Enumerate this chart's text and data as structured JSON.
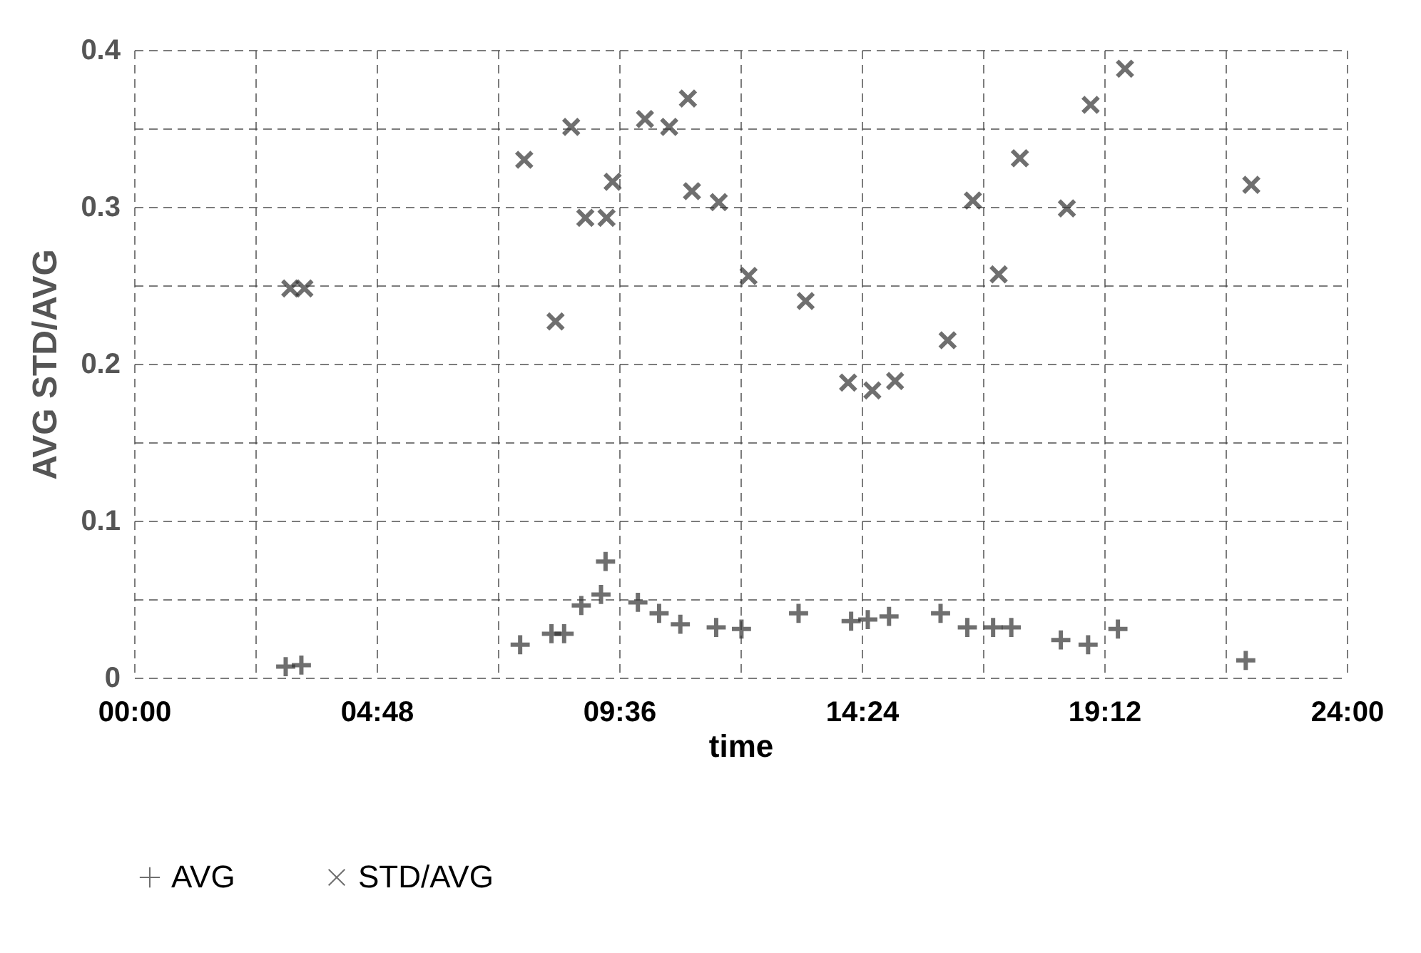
{
  "chart_data": {
    "type": "scatter",
    "xlabel": "time",
    "ylabel": "AVG STD/AVG",
    "xlim": [
      0,
      24
    ],
    "ylim": [
      0,
      0.4
    ],
    "xticks": [
      {
        "value": 0,
        "label": "00:00"
      },
      {
        "value": 2.4,
        "label": null
      },
      {
        "value": 4.8,
        "label": "04:48"
      },
      {
        "value": 7.2,
        "label": null
      },
      {
        "value": 9.6,
        "label": "09:36"
      },
      {
        "value": 12,
        "label": null
      },
      {
        "value": 14.4,
        "label": "14:24"
      },
      {
        "value": 16.8,
        "label": null
      },
      {
        "value": 19.2,
        "label": "19:12"
      },
      {
        "value": 21.6,
        "label": null
      },
      {
        "value": 24,
        "label": "24:00"
      }
    ],
    "yticks": [
      0,
      {
        "value": 0.05,
        "label": null
      },
      0.1,
      {
        "value": 0.15,
        "label": null
      },
      0.2,
      {
        "value": 0.25,
        "label": null
      },
      0.3,
      {
        "value": 0.35,
        "label": null
      },
      0.4
    ],
    "grid": true,
    "legend": "bottom",
    "series": [
      {
        "name": "AVG",
        "color": "#333333",
        "marker": "cross",
        "x": [
          3.0,
          3.31,
          7.64,
          8.26,
          8.51,
          8.85,
          9.24,
          9.33,
          9.97,
          10.39,
          10.81,
          11.52,
          12.02,
          13.15,
          14.19,
          14.52,
          14.94,
          15.96,
          16.49,
          17.0,
          17.36,
          18.34,
          18.88,
          19.47,
          22.0
        ],
        "values": [
          0.007,
          0.008,
          0.021,
          0.028,
          0.028,
          0.046,
          0.053,
          0.074,
          0.048,
          0.041,
          0.034,
          0.032,
          0.031,
          0.041,
          0.036,
          0.037,
          0.039,
          0.041,
          0.032,
          0.032,
          0.032,
          0.024,
          0.021,
          0.031,
          0.011
        ]
      },
      {
        "name": "STD/AVG",
        "color": "#333333",
        "marker": "x",
        "x": [
          3.09,
          3.37,
          7.72,
          8.34,
          8.65,
          8.93,
          9.35,
          9.47,
          10.11,
          10.59,
          10.96,
          11.04,
          11.57,
          12.16,
          13.29,
          14.13,
          14.61,
          15.06,
          16.1,
          16.6,
          17.11,
          17.53,
          18.46,
          18.93,
          19.61,
          22.11
        ],
        "values": [
          0.248,
          0.248,
          0.33,
          0.227,
          0.351,
          0.293,
          0.293,
          0.316,
          0.356,
          0.351,
          0.369,
          0.31,
          0.303,
          0.256,
          0.24,
          0.188,
          0.183,
          0.189,
          0.215,
          0.304,
          0.257,
          0.331,
          0.299,
          0.365,
          0.388,
          0.314
        ]
      }
    ]
  }
}
